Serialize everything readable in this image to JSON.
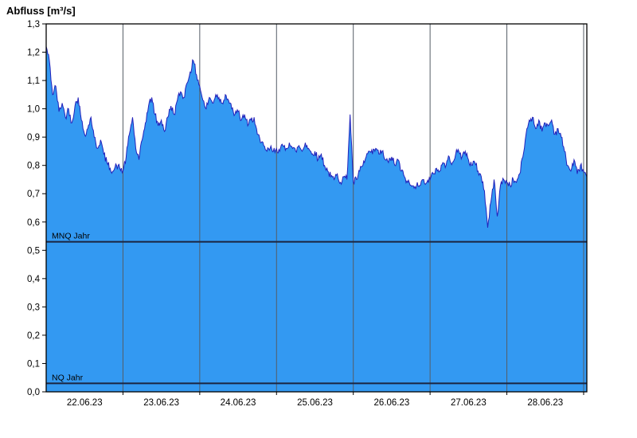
{
  "chart_data": {
    "type": "area",
    "title": "Abfluss [m³/s]",
    "xlabel": "",
    "ylabel": "Abfluss [m³/s]",
    "ylim": [
      0,
      1.3
    ],
    "y_tick_step": 0.1,
    "y_tick_labels": [
      "0,0",
      "0,1",
      "0,2",
      "0,3",
      "0,4",
      "0,5",
      "0,6",
      "0,7",
      "0,8",
      "0,9",
      "1,0",
      "1,1",
      "1,2",
      "1,3"
    ],
    "x_labels": [
      "22.06.23",
      "23.06.23",
      "24.06.23",
      "25.06.23",
      "26.06.23",
      "27.06.23",
      "28.06.23"
    ],
    "x_unit": "hours since 22.06.23 00:00",
    "grid": "vertical-daily",
    "legend": "none",
    "noise_amplitude": 0.013,
    "colors": {
      "area_fill": "#3399f2",
      "line": "#2222bb",
      "reference_line": "#1b2440",
      "grid": "#555d66",
      "axis": "#000000",
      "background": "#ffffff"
    },
    "reference_lines": [
      {
        "label": "MNQ Jahr",
        "value": 0.53
      },
      {
        "label": "NQ Jahr",
        "value": 0.03
      }
    ],
    "series": [
      {
        "name": "Abfluss",
        "sampling_hours": 1,
        "values": [
          1.22,
          1.17,
          1.05,
          1.08,
          0.99,
          1.02,
          0.97,
          1.0,
          0.95,
          1.01,
          1.04,
          0.96,
          0.91,
          0.93,
          0.97,
          0.9,
          0.86,
          0.89,
          0.84,
          0.81,
          0.79,
          0.78,
          0.8,
          0.79,
          0.78,
          0.83,
          0.91,
          0.97,
          0.86,
          0.82,
          0.89,
          0.95,
          1.01,
          1.04,
          0.98,
          0.94,
          0.96,
          0.92,
          0.97,
          1.01,
          0.98,
          1.03,
          1.06,
          1.04,
          1.09,
          1.13,
          1.17,
          1.12,
          1.08,
          1.03,
          1.0,
          1.04,
          1.02,
          1.05,
          1.04,
          1.02,
          1.05,
          1.03,
          1.0,
          0.98,
          0.99,
          0.96,
          0.98,
          0.94,
          0.96,
          0.97,
          0.91,
          0.88,
          0.87,
          0.85,
          0.86,
          0.85,
          0.86,
          0.85,
          0.87,
          0.86,
          0.88,
          0.86,
          0.85,
          0.87,
          0.85,
          0.88,
          0.86,
          0.84,
          0.85,
          0.82,
          0.84,
          0.8,
          0.78,
          0.76,
          0.75,
          0.77,
          0.74,
          0.76,
          0.75,
          0.98,
          0.74,
          0.75,
          0.78,
          0.8,
          0.83,
          0.85,
          0.84,
          0.86,
          0.84,
          0.85,
          0.82,
          0.81,
          0.83,
          0.8,
          0.82,
          0.78,
          0.76,
          0.74,
          0.73,
          0.72,
          0.74,
          0.73,
          0.75,
          0.74,
          0.75,
          0.77,
          0.79,
          0.78,
          0.81,
          0.8,
          0.83,
          0.81,
          0.84,
          0.85,
          0.83,
          0.85,
          0.82,
          0.8,
          0.81,
          0.78,
          0.76,
          0.71,
          0.58,
          0.67,
          0.75,
          0.62,
          0.73,
          0.75,
          0.74,
          0.73,
          0.75,
          0.74,
          0.77,
          0.83,
          0.91,
          0.96,
          0.97,
          0.93,
          0.96,
          0.92,
          0.95,
          0.94,
          0.96,
          0.91,
          0.93,
          0.9,
          0.85,
          0.8,
          0.78,
          0.82,
          0.77,
          0.8,
          0.78,
          0.76
        ]
      }
    ]
  }
}
